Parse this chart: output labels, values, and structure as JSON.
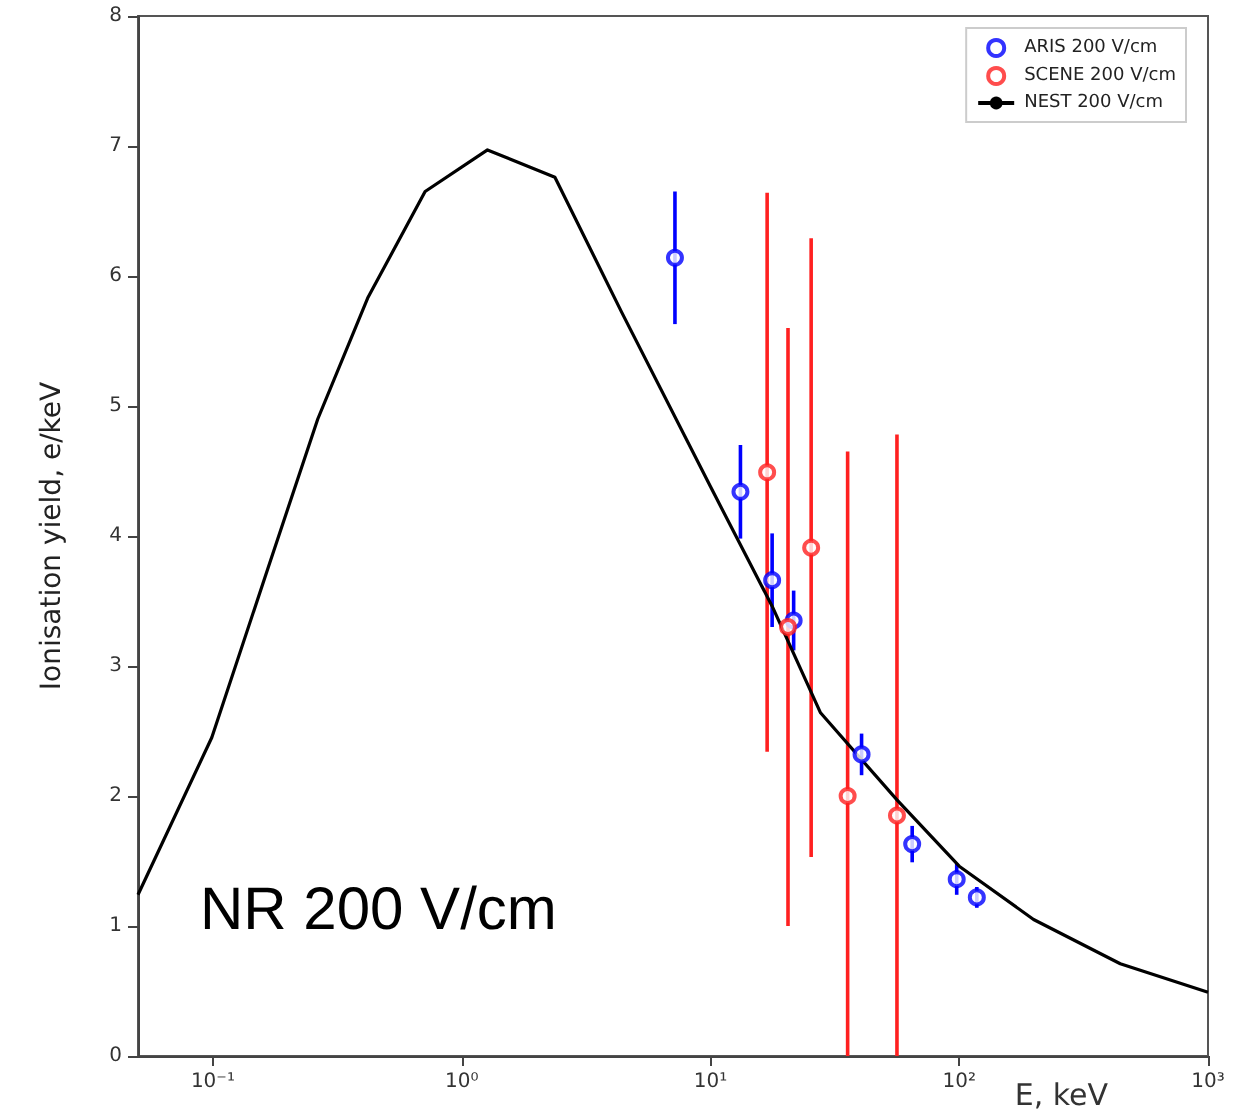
{
  "chart_data": {
    "type": "scatter",
    "xlabel": "E, keV",
    "ylabel": "Ionisation yield, e/keV",
    "annotations": [
      "NR 200 V/cm"
    ],
    "log": "x",
    "xlim": [
      0.05,
      1000
    ],
    "xticks": [
      {
        "value": 0.1,
        "label": "10⁻¹"
      },
      {
        "value": 1,
        "label": "10⁰"
      },
      {
        "value": 10,
        "label": "10¹"
      },
      {
        "value": 100,
        "label": "10²"
      },
      {
        "value": 1000,
        "label": "10³"
      }
    ],
    "ylim": [
      0,
      8
    ],
    "yticks": [
      0,
      1,
      2,
      3,
      4,
      5,
      6,
      7,
      8
    ],
    "grid": false,
    "legend": "top right",
    "marker": "circle",
    "series": [
      {
        "name": "ARIS 200 V/cm",
        "color": "#0000ff",
        "x": [
          7.2,
          13.2,
          17.7,
          21.6,
          40.5,
          64.7,
          97.7,
          117.7
        ],
        "values": [
          6.14,
          4.34,
          3.66,
          3.35,
          2.32,
          1.63,
          1.36,
          1.22
        ],
        "errors": [
          0.51,
          0.36,
          0.36,
          0.23,
          0.16,
          0.14,
          0.12,
          0.08
        ]
      },
      {
        "name": "SCENE 200 V/cm",
        "color": "#ff2020",
        "x": [
          16.9,
          20.5,
          25.4,
          35.6,
          56.2
        ],
        "values": [
          4.49,
          3.3,
          3.91,
          2.0,
          1.85
        ],
        "errors": [
          2.15,
          2.3,
          2.38,
          [
            0,
            4.65
          ],
          [
            0,
            4.78
          ]
        ]
      },
      {
        "name": "NEST 200 V/cm",
        "type": "line",
        "marker": "none",
        "color": "#000000",
        "x": [
          0.05,
          0.099,
          0.167,
          0.264,
          0.419,
          0.713,
          1.27,
          2.37,
          4.4,
          10,
          17.7,
          27.7,
          56.2,
          100,
          199,
          444,
          1000
        ],
        "values": [
          1.24,
          2.45,
          3.76,
          4.9,
          5.83,
          6.65,
          6.97,
          6.76,
          5.72,
          4.38,
          3.46,
          2.64,
          1.97,
          1.46,
          1.05,
          0.71,
          0.49
        ]
      }
    ]
  }
}
